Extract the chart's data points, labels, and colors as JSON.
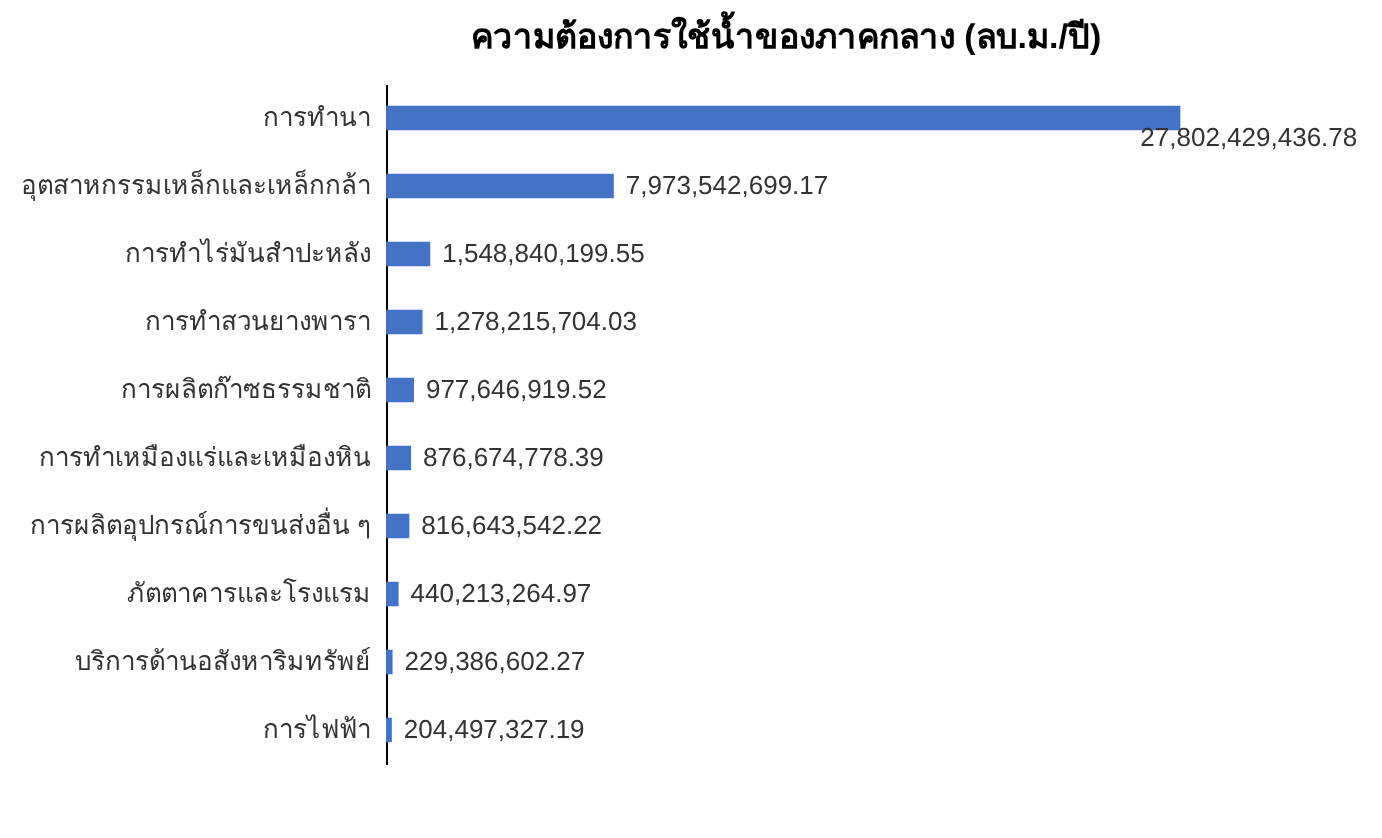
{
  "chart_data": {
    "type": "bar",
    "orientation": "horizontal",
    "title": "ความต้องการใช้น้ำของภาคกลาง (ลบ.ม./ปี)",
    "categories": [
      "การทำนา",
      "อุตสาหกรรมเหล็กและเหล็กกล้า",
      "การทำไร่มันสำปะหลัง",
      "การทำสวนยางพารา",
      "การผลิตก๊าซธรรมชาติ",
      "การทำเหมืองแร่และเหมืองหิน",
      "การผลิตอุปกรณ์การขนส่งอื่น ๆ",
      "ภัตตาคารและโรงแรม",
      "บริการด้านอสังหาริมทรัพย์",
      "การไฟฟ้า"
    ],
    "values": [
      27802429436.78,
      7973542699.17,
      1548840199.55,
      1278215704.03,
      977646919.52,
      876674778.39,
      816643542.22,
      440213264.97,
      229386602.27,
      204497327.19
    ],
    "value_labels": [
      "27,802,429,436.78",
      "7,973,542,699.17",
      "1,548,840,199.55",
      "1,278,215,704.03",
      "977,646,919.52",
      "876,674,778.39",
      "816,643,542.22",
      "440,213,264.97",
      "229,386,602.27",
      "204,497,327.19"
    ],
    "color": "#4472c4",
    "tick_labels": "y"
  }
}
